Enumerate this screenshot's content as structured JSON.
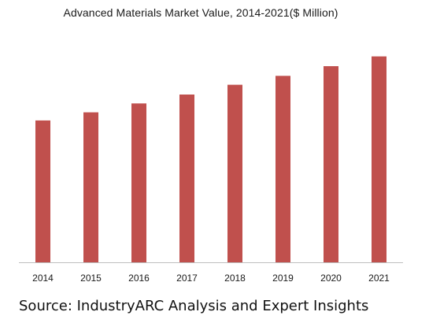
{
  "chart_data": {
    "type": "bar",
    "title": "Advanced Materials Market Value, 2014-2021($ Million)",
    "xlabel": "",
    "ylabel": "",
    "categories": [
      "2014",
      "2015",
      "2016",
      "2017",
      "2018",
      "2019",
      "2020",
      "2021"
    ],
    "values": [
      175,
      185,
      196,
      207,
      219,
      230,
      242,
      254
    ],
    "ylim": [
      0,
      275
    ],
    "grid": false,
    "legend": "none",
    "bar_color": "#c0504d",
    "axis_color": "#bfbfbf"
  },
  "source_note": "Source: IndustryARC Analysis and Expert Insights"
}
